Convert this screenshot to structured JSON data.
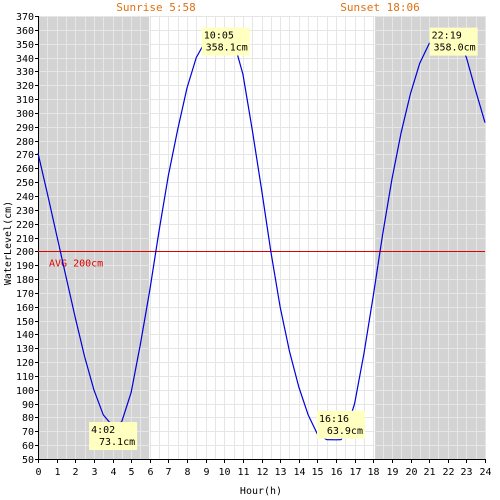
{
  "chart_data": {
    "type": "line",
    "xlabel": "Hour(h)",
    "ylabel": "WaterLevel(cm)",
    "xlim": [
      0,
      24
    ],
    "ylim": [
      50,
      370
    ],
    "x_ticks": [
      0,
      1,
      2,
      3,
      4,
      5,
      6,
      7,
      8,
      9,
      10,
      11,
      12,
      13,
      14,
      15,
      16,
      17,
      18,
      19,
      20,
      21,
      22,
      23,
      24
    ],
    "y_ticks": [
      50,
      60,
      70,
      80,
      90,
      100,
      110,
      120,
      130,
      140,
      150,
      160,
      170,
      180,
      190,
      200,
      210,
      220,
      230,
      240,
      250,
      260,
      270,
      280,
      290,
      300,
      310,
      320,
      330,
      340,
      350,
      360,
      370
    ],
    "grid": true,
    "sunrise": {
      "label": "Sunrise 5:58",
      "hour": 5.967
    },
    "sunset": {
      "label": "Sunset 18:06",
      "hour": 18.1
    },
    "average": {
      "label": "AVG 200cm",
      "value": 200
    },
    "series": [
      {
        "x": [
          0,
          0.5,
          1,
          1.5,
          2,
          2.5,
          3,
          3.5,
          4,
          4.033,
          4.5,
          5,
          5.5,
          6,
          6.5,
          7,
          7.5,
          8,
          8.5,
          9,
          9.5,
          10,
          10.083,
          10.5,
          11,
          11.5,
          12,
          12.5,
          13,
          13.5,
          14,
          14.5,
          15,
          15.5,
          16,
          16.267,
          16.5,
          17,
          17.5,
          18,
          18.5,
          19,
          19.5,
          20,
          20.5,
          21,
          21.5,
          22,
          22.317,
          22.5,
          23,
          23.5,
          24
        ],
        "y": [
          271,
          242,
          212,
          182,
          152,
          124,
          100,
          82,
          74,
          73.1,
          77,
          98,
          133,
          172,
          215,
          255,
          288,
          318,
          340,
          352,
          357,
          358,
          358.1,
          352,
          328,
          288,
          245,
          200,
          160,
          128,
          102,
          82,
          68,
          64,
          63.9,
          64,
          68,
          90,
          126,
          168,
          212,
          252,
          286,
          314,
          336,
          350,
          356,
          358,
          358,
          355,
          340,
          316,
          293
        ]
      }
    ],
    "annotations": [
      {
        "time": "4:02",
        "value": "73.1cm",
        "x": 4.033,
        "y": 73.1,
        "side": "below"
      },
      {
        "time": "10:05",
        "value": "358.1cm",
        "x": 10.083,
        "y": 358.1,
        "side": "below"
      },
      {
        "time": "16:16",
        "value": "63.9cm",
        "x": 16.267,
        "y": 63.9,
        "side": "above"
      },
      {
        "time": "22:19",
        "value": "358.0cm",
        "x": 22.317,
        "y": 358.0,
        "side": "below"
      }
    ],
    "colors": {
      "line": "#0000dd",
      "avg_line": "#e00000",
      "night_shade": "#d3d3d3",
      "grid": "#dcdcdc",
      "annotation_bg": "#ffffc0",
      "sun_text": "#e07010"
    }
  }
}
